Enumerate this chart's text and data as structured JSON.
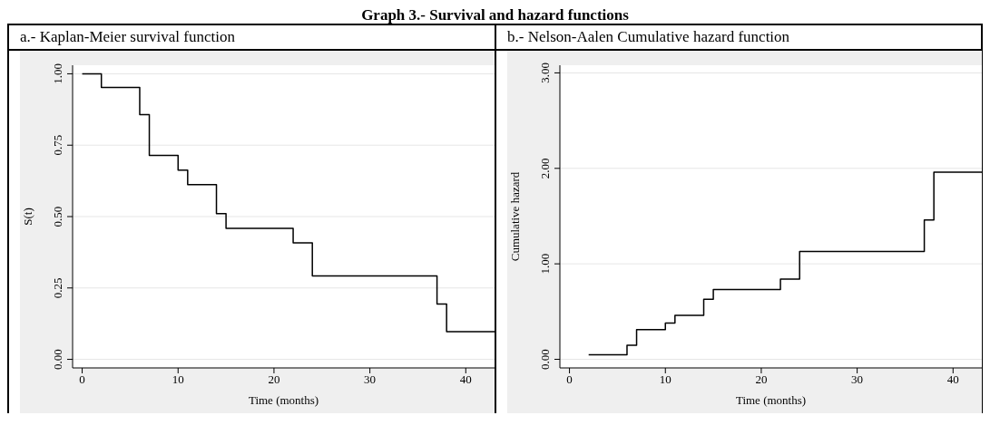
{
  "chart_data": [
    {
      "type": "step",
      "title": "a.- Kaplan-Meier survival function",
      "annotations": [
        "Graph 3.- Survival and hazard functions"
      ],
      "xlabel": "Time (months)",
      "ylabel": "S(t)",
      "x": [
        0,
        2,
        6,
        7,
        10,
        11,
        14,
        15,
        22,
        24,
        37,
        38,
        43
      ],
      "series": [
        {
          "color": "#000000",
          "values": [
            1.0,
            0.952,
            0.857,
            0.714,
            0.663,
            0.612,
            0.51,
            0.459,
            0.408,
            0.292,
            0.194,
            0.097,
            0.097
          ]
        }
      ],
      "xlim": [
        -1,
        43
      ],
      "xticks": [
        0,
        10,
        20,
        30,
        40
      ],
      "ylim": [
        -0.03,
        1.03
      ],
      "yticks": [
        {
          "value": 0,
          "label": "0.00"
        },
        {
          "value": 0.25,
          "label": "0.25"
        },
        {
          "value": 0.5,
          "label": "0.50"
        },
        {
          "value": 0.75,
          "label": "0.75"
        },
        {
          "value": 1,
          "label": "1.00"
        }
      ],
      "grid": "y",
      "marker": "none",
      "line_style": "solid",
      "legend": false
    },
    {
      "type": "step",
      "title": "b.- Nelson-Aalen Cumulative hazard function",
      "xlabel": "Time (months)",
      "ylabel": "Cumulative hazard",
      "x": [
        2,
        6,
        7,
        10,
        11,
        14,
        15,
        22,
        24,
        37,
        38,
        43
      ],
      "series": [
        {
          "color": "#000000",
          "values": [
            0.048,
            0.148,
            0.31,
            0.38,
            0.46,
            0.63,
            0.73,
            0.84,
            1.13,
            1.46,
            1.96,
            1.96
          ]
        }
      ],
      "xlim": [
        -1,
        43
      ],
      "xticks": [
        0,
        10,
        20,
        30,
        40
      ],
      "ylim": [
        -0.09,
        3.08
      ],
      "yticks": [
        {
          "value": 0,
          "label": "0.00"
        },
        {
          "value": 1,
          "label": "1.00"
        },
        {
          "value": 2,
          "label": "2.00"
        },
        {
          "value": 3,
          "label": "3.00"
        }
      ],
      "grid": "y",
      "marker": "none",
      "line_style": "solid",
      "legend": false
    }
  ]
}
